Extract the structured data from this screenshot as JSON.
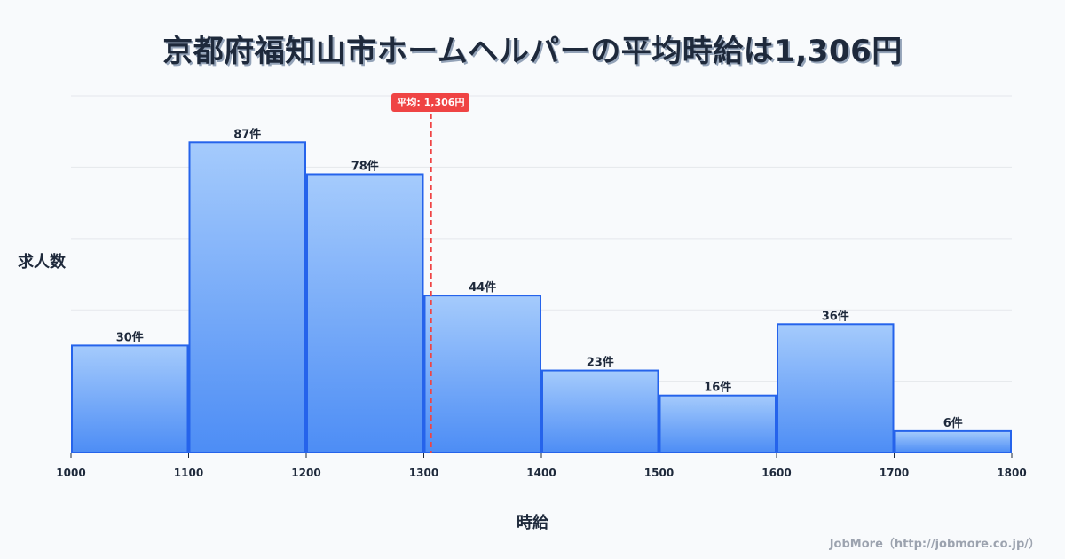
{
  "title": "京都府福知山市ホームヘルパーの平均時給は1,306円",
  "axes": {
    "ylabel": "求人数",
    "xlabel": "時給"
  },
  "average": {
    "label": "平均: 1,306円",
    "value": 1306,
    "color": "#ef4444"
  },
  "credit": "JobMore（http://jobmore.co.jp/）",
  "colors": {
    "bar_top": "#a5cbfc",
    "bar_bottom": "#4d8df5",
    "bar_border": "#2563eb",
    "grid": "#e5e7eb",
    "text": "#1e293b",
    "background": "#f8fafc"
  },
  "chart_data": {
    "type": "bar",
    "title": "京都府福知山市ホームヘルパーの平均時給は1,306円",
    "xlabel": "時給",
    "ylabel": "求人数",
    "bin_edges": [
      1000,
      1100,
      1200,
      1300,
      1400,
      1500,
      1600,
      1700,
      1800
    ],
    "categories": [
      "1000-1100",
      "1100-1200",
      "1200-1300",
      "1300-1400",
      "1400-1500",
      "1500-1600",
      "1600-1700",
      "1700-1800"
    ],
    "values": [
      30,
      87,
      78,
      44,
      23,
      16,
      36,
      6
    ],
    "value_labels": [
      "30件",
      "87件",
      "78件",
      "44件",
      "23件",
      "16件",
      "36件",
      "6件"
    ],
    "x_ticks": [
      "1000",
      "1100",
      "1200",
      "1300",
      "1400",
      "1500",
      "1600",
      "1700",
      "1800"
    ],
    "xlim": [
      1000,
      1800
    ],
    "ylim": [
      0,
      102
    ],
    "grid": true,
    "y_grid_values": [
      20,
      40,
      60,
      80,
      100
    ],
    "annotations": [
      {
        "type": "vline",
        "x": 1306,
        "label": "平均: 1,306円",
        "style": "dashed",
        "color": "#ef4444"
      }
    ],
    "legend": null
  }
}
